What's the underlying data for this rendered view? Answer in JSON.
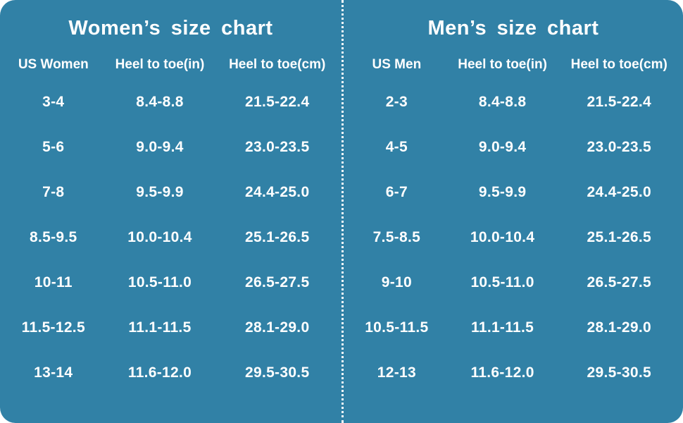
{
  "page": {
    "background_color": "#3181A6",
    "text_color": "#FFFFFF",
    "divider_style": "vertical dotted white line"
  },
  "women": {
    "title": "Women’s size chart",
    "headers": [
      "US Women",
      "Heel to toe(in)",
      "Heel to toe(cm)"
    ],
    "rows": [
      [
        "3-4",
        "8.4-8.8",
        "21.5-22.4"
      ],
      [
        "5-6",
        "9.0-9.4",
        "23.0-23.5"
      ],
      [
        "7-8",
        "9.5-9.9",
        "24.4-25.0"
      ],
      [
        "8.5-9.5",
        "10.0-10.4",
        "25.1-26.5"
      ],
      [
        "10-11",
        "10.5-11.0",
        "26.5-27.5"
      ],
      [
        "11.5-12.5",
        "11.1-11.5",
        "28.1-29.0"
      ],
      [
        "13-14",
        "11.6-12.0",
        "29.5-30.5"
      ]
    ]
  },
  "men": {
    "title": "Men’s size chart",
    "headers": [
      "US Men",
      "Heel to toe(in)",
      "Heel to toe(cm)"
    ],
    "rows": [
      [
        "2-3",
        "8.4-8.8",
        "21.5-22.4"
      ],
      [
        "4-5",
        "9.0-9.4",
        "23.0-23.5"
      ],
      [
        "6-7",
        "9.5-9.9",
        "24.4-25.0"
      ],
      [
        "7.5-8.5",
        "10.0-10.4",
        "25.1-26.5"
      ],
      [
        "9-10",
        "10.5-11.0",
        "26.5-27.5"
      ],
      [
        "10.5-11.5",
        "11.1-11.5",
        "28.1-29.0"
      ],
      [
        "12-13",
        "11.6-12.0",
        "29.5-30.5"
      ]
    ]
  },
  "chart_data": [
    {
      "type": "table",
      "title": "Women’s size chart",
      "columns": [
        "US Women",
        "Heel to toe(in)",
        "Heel to toe(cm)"
      ],
      "rows": [
        [
          "3-4",
          "8.4-8.8",
          "21.5-22.4"
        ],
        [
          "5-6",
          "9.0-9.4",
          "23.0-23.5"
        ],
        [
          "7-8",
          "9.5-9.9",
          "24.4-25.0"
        ],
        [
          "8.5-9.5",
          "10.0-10.4",
          "25.1-26.5"
        ],
        [
          "10-11",
          "10.5-11.0",
          "26.5-27.5"
        ],
        [
          "11.5-12.5",
          "11.1-11.5",
          "28.1-29.0"
        ],
        [
          "13-14",
          "11.6-12.0",
          "29.5-30.5"
        ]
      ]
    },
    {
      "type": "table",
      "title": "Men’s size chart",
      "columns": [
        "US Men",
        "Heel to toe(in)",
        "Heel to toe(cm)"
      ],
      "rows": [
        [
          "2-3",
          "8.4-8.8",
          "21.5-22.4"
        ],
        [
          "4-5",
          "9.0-9.4",
          "23.0-23.5"
        ],
        [
          "6-7",
          "9.5-9.9",
          "24.4-25.0"
        ],
        [
          "7.5-8.5",
          "10.0-10.4",
          "25.1-26.5"
        ],
        [
          "9-10",
          "10.5-11.0",
          "26.5-27.5"
        ],
        [
          "10.5-11.5",
          "11.1-11.5",
          "28.1-29.0"
        ],
        [
          "12-13",
          "11.6-12.0",
          "29.5-30.5"
        ]
      ]
    }
  ]
}
